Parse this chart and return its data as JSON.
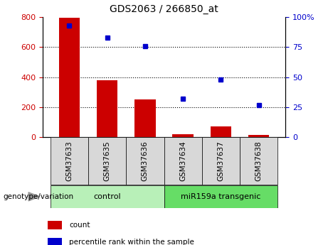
{
  "title": "GDS2063 / 266850_at",
  "categories": [
    "GSM37633",
    "GSM37635",
    "GSM37636",
    "GSM37634",
    "GSM37637",
    "GSM37638"
  ],
  "bar_values": [
    795,
    380,
    250,
    20,
    70,
    15
  ],
  "percentile_values": [
    93,
    83,
    76,
    32,
    48,
    27
  ],
  "bar_color": "#cc0000",
  "dot_color": "#0000cc",
  "ylim_left": [
    0,
    800
  ],
  "ylim_right": [
    0,
    100
  ],
  "yticks_left": [
    0,
    200,
    400,
    600,
    800
  ],
  "yticks_right": [
    0,
    25,
    50,
    75,
    100
  ],
  "yticklabels_right": [
    "0",
    "25",
    "50",
    "75",
    "100%"
  ],
  "group_labels": [
    "control",
    "miR159a transgenic"
  ],
  "group_colors": [
    "#b8f0b8",
    "#66dd66"
  ],
  "bottom_label": "genotype/variation",
  "legend_items": [
    {
      "label": "count",
      "color": "#cc0000"
    },
    {
      "label": "percentile rank within the sample",
      "color": "#0000cc"
    }
  ],
  "sample_box_color": "#d8d8d8",
  "figsize": [
    4.61,
    3.45
  ],
  "dpi": 100
}
